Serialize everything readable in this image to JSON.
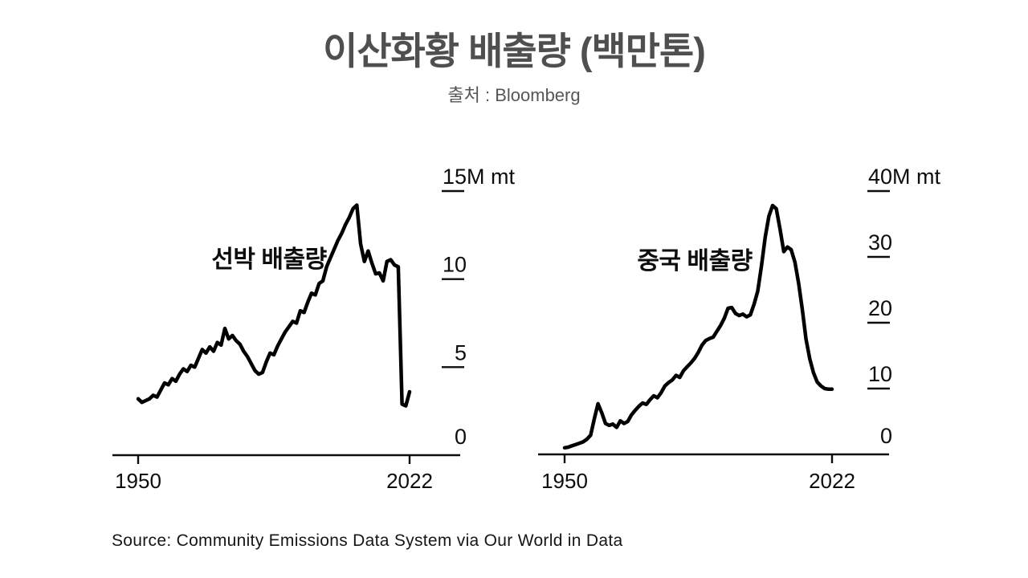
{
  "header": {
    "title": "이산화황 배출량 (백만톤)",
    "subtitle": "출처 : Bloomberg"
  },
  "footer": {
    "source": "Source: Community Emissions Data System via Our World in Data"
  },
  "chart_data": [
    {
      "type": "line",
      "name": "ship-emissions",
      "annotation": "선박 배출량",
      "annotation_color": "#d41b1b",
      "line_color": "#000000",
      "xlim": [
        1950,
        2022
      ],
      "ylim": [
        0,
        15
      ],
      "x_ticks": [
        1950,
        2022
      ],
      "x_tick_labels": [
        "1950",
        "2022"
      ],
      "y_ticks": [
        {
          "value": 0,
          "label": "0"
        },
        {
          "value": 5,
          "label": "5"
        },
        {
          "value": 10,
          "label": "10"
        },
        {
          "value": 15,
          "label": "15",
          "suffix": "M mt"
        }
      ],
      "x": [
        1950,
        1951,
        1952,
        1953,
        1954,
        1955,
        1956,
        1957,
        1958,
        1959,
        1960,
        1961,
        1962,
        1963,
        1964,
        1965,
        1966,
        1967,
        1968,
        1969,
        1970,
        1971,
        1972,
        1973,
        1974,
        1975,
        1976,
        1977,
        1978,
        1979,
        1980,
        1981,
        1982,
        1983,
        1984,
        1985,
        1986,
        1987,
        1988,
        1989,
        1990,
        1991,
        1992,
        1993,
        1994,
        1995,
        1996,
        1997,
        1998,
        1999,
        2000,
        2001,
        2002,
        2003,
        2004,
        2005,
        2006,
        2007,
        2008,
        2009,
        2010,
        2011,
        2012,
        2013,
        2014,
        2015,
        2016,
        2017,
        2018,
        2019,
        2020,
        2021,
        2022
      ],
      "values": [
        3.2,
        3.0,
        3.1,
        3.2,
        3.4,
        3.3,
        3.7,
        4.1,
        4.0,
        4.35,
        4.2,
        4.6,
        4.9,
        4.75,
        5.1,
        5.0,
        5.5,
        6.0,
        5.8,
        6.15,
        5.9,
        6.4,
        6.25,
        7.2,
        6.6,
        6.8,
        6.5,
        6.3,
        5.9,
        5.6,
        5.2,
        4.8,
        4.6,
        4.7,
        5.3,
        5.8,
        5.7,
        6.2,
        6.6,
        7.0,
        7.3,
        7.6,
        7.5,
        8.2,
        8.1,
        8.7,
        9.2,
        9.1,
        9.75,
        9.9,
        10.7,
        11.2,
        11.7,
        12.2,
        12.6,
        13.1,
        13.5,
        14.0,
        14.2,
        12.0,
        11.0,
        11.6,
        10.9,
        10.3,
        10.35,
        9.9,
        11.0,
        11.1,
        10.8,
        10.7,
        2.9,
        2.8,
        3.6
      ]
    },
    {
      "type": "line",
      "name": "china-emissions",
      "annotation": "중국 배출량",
      "annotation_color": "#d41b1b",
      "line_color": "#000000",
      "xlim": [
        1950,
        2022
      ],
      "ylim": [
        0,
        40
      ],
      "x_ticks": [
        1950,
        2022
      ],
      "x_tick_labels": [
        "1950",
        "2022"
      ],
      "y_ticks": [
        {
          "value": 0,
          "label": "0"
        },
        {
          "value": 10,
          "label": "10"
        },
        {
          "value": 20,
          "label": "20"
        },
        {
          "value": 30,
          "label": "30"
        },
        {
          "value": 40,
          "label": "40",
          "suffix": "M mt"
        }
      ],
      "x": [
        1950,
        1951,
        1952,
        1953,
        1954,
        1955,
        1956,
        1957,
        1958,
        1959,
        1960,
        1961,
        1962,
        1963,
        1964,
        1965,
        1966,
        1967,
        1968,
        1969,
        1970,
        1971,
        1972,
        1973,
        1974,
        1975,
        1976,
        1977,
        1978,
        1979,
        1980,
        1981,
        1982,
        1983,
        1984,
        1985,
        1986,
        1987,
        1988,
        1989,
        1990,
        1991,
        1992,
        1993,
        1994,
        1995,
        1996,
        1997,
        1998,
        1999,
        2000,
        2001,
        2002,
        2003,
        2004,
        2005,
        2006,
        2007,
        2008,
        2009,
        2010,
        2011,
        2012,
        2013,
        2014,
        2015,
        2016,
        2017,
        2018,
        2019,
        2020,
        2021,
        2022
      ],
      "values": [
        1.0,
        1.1,
        1.3,
        1.5,
        1.7,
        1.9,
        2.3,
        2.9,
        5.4,
        7.7,
        6.3,
        4.7,
        4.4,
        4.6,
        4.1,
        5.1,
        4.7,
        5.0,
        6.0,
        6.7,
        7.3,
        7.8,
        7.6,
        8.3,
        8.9,
        8.6,
        9.4,
        10.4,
        10.9,
        11.3,
        12.0,
        11.7,
        12.7,
        13.3,
        13.9,
        14.6,
        15.5,
        16.6,
        17.3,
        17.6,
        17.8,
        18.7,
        19.6,
        20.7,
        22.2,
        22.3,
        21.4,
        21.1,
        21.3,
        20.9,
        21.2,
        22.8,
        24.8,
        28.6,
        33.0,
        36.2,
        37.8,
        37.3,
        34.2,
        30.8,
        31.5,
        31.1,
        29.2,
        26.0,
        22.0,
        17.5,
        14.5,
        12.4,
        11.0,
        10.4,
        10.0,
        9.9,
        9.9
      ]
    }
  ]
}
